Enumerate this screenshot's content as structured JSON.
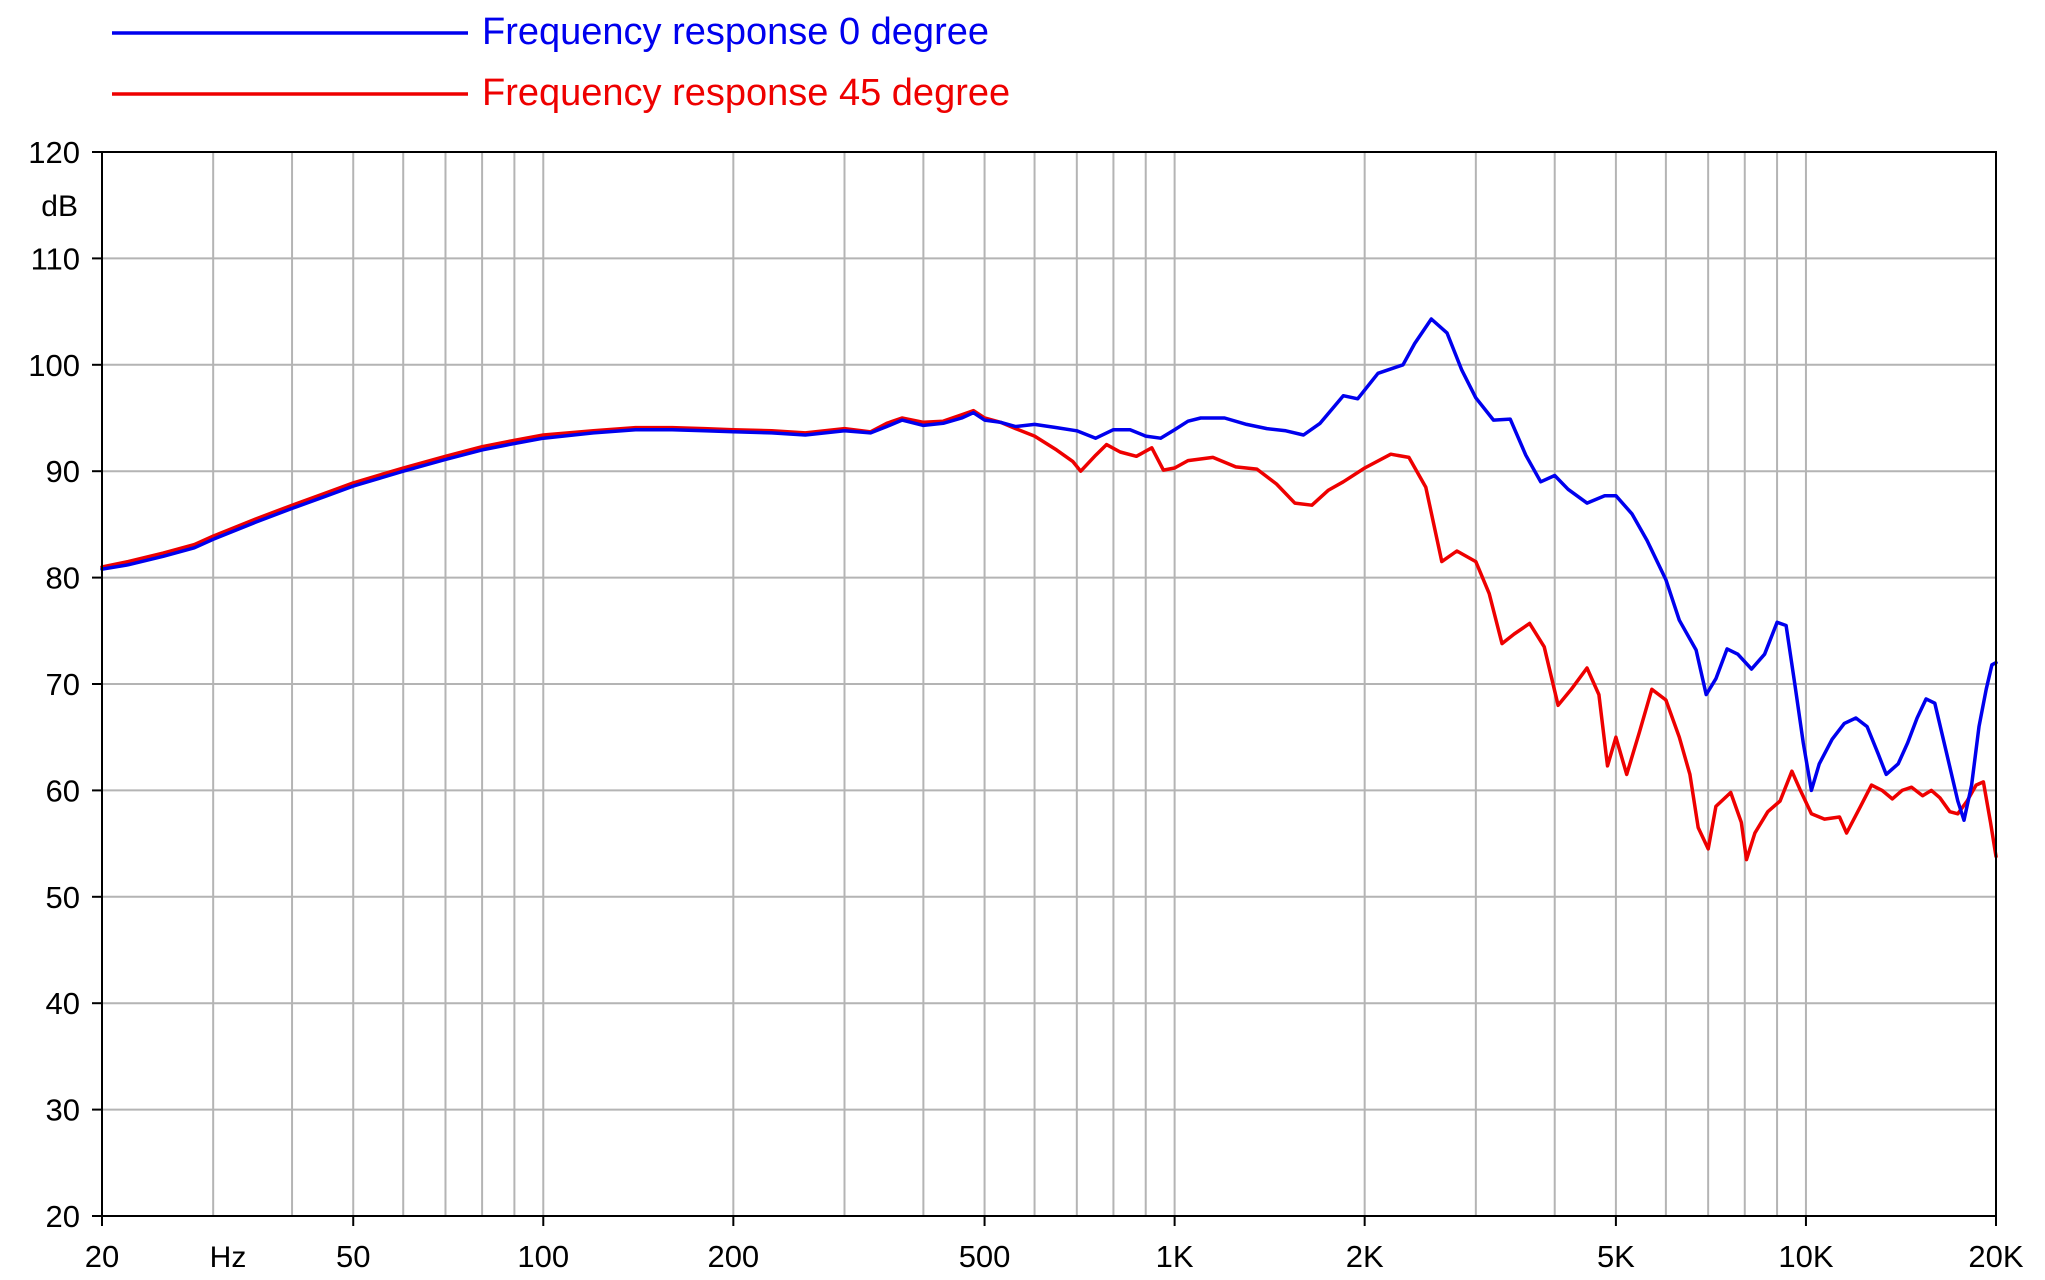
{
  "chart_data": {
    "type": "line",
    "title": "",
    "xlabel": "",
    "ylabel": "",
    "x_scale": "log",
    "xlim": [
      20,
      20000
    ],
    "ylim": [
      20,
      120
    ],
    "grid": true,
    "legend_position": "top-left",
    "y_unit": "dB",
    "x_unit": "Hz",
    "x_ticks": [
      {
        "value": 20,
        "label": "20"
      },
      {
        "value": 50,
        "label": "50"
      },
      {
        "value": 100,
        "label": "100"
      },
      {
        "value": 200,
        "label": "200"
      },
      {
        "value": 500,
        "label": "500"
      },
      {
        "value": 1000,
        "label": "1K"
      },
      {
        "value": 2000,
        "label": "2K"
      },
      {
        "value": 5000,
        "label": "5K"
      },
      {
        "value": 10000,
        "label": "10K"
      },
      {
        "value": 20000,
        "label": "20K"
      }
    ],
    "y_ticks": [
      20,
      30,
      40,
      50,
      60,
      70,
      80,
      90,
      100,
      110,
      120
    ],
    "series": [
      {
        "name": "Frequency response 0 degree",
        "color": "#0000ee",
        "points": [
          [
            20,
            80.8
          ],
          [
            22,
            81.2
          ],
          [
            25,
            82.0
          ],
          [
            28,
            82.8
          ],
          [
            30,
            83.6
          ],
          [
            35,
            85.2
          ],
          [
            40,
            86.5
          ],
          [
            45,
            87.6
          ],
          [
            50,
            88.6
          ],
          [
            60,
            90.0
          ],
          [
            70,
            91.1
          ],
          [
            80,
            92.0
          ],
          [
            90,
            92.6
          ],
          [
            100,
            93.1
          ],
          [
            120,
            93.6
          ],
          [
            140,
            93.9
          ],
          [
            160,
            93.9
          ],
          [
            180,
            93.8
          ],
          [
            200,
            93.7
          ],
          [
            230,
            93.6
          ],
          [
            260,
            93.4
          ],
          [
            300,
            93.8
          ],
          [
            330,
            93.6
          ],
          [
            350,
            94.2
          ],
          [
            370,
            94.8
          ],
          [
            400,
            94.3
          ],
          [
            430,
            94.5
          ],
          [
            460,
            95.0
          ],
          [
            480,
            95.5
          ],
          [
            500,
            94.8
          ],
          [
            530,
            94.6
          ],
          [
            560,
            94.2
          ],
          [
            600,
            94.4
          ],
          [
            650,
            94.1
          ],
          [
            700,
            93.8
          ],
          [
            750,
            93.1
          ],
          [
            800,
            93.9
          ],
          [
            850,
            93.9
          ],
          [
            900,
            93.3
          ],
          [
            950,
            93.1
          ],
          [
            1000,
            93.9
          ],
          [
            1050,
            94.7
          ],
          [
            1100,
            95.0
          ],
          [
            1200,
            95.0
          ],
          [
            1300,
            94.4
          ],
          [
            1400,
            94.0
          ],
          [
            1500,
            93.8
          ],
          [
            1600,
            93.4
          ],
          [
            1700,
            94.5
          ],
          [
            1850,
            97.1
          ],
          [
            1950,
            96.8
          ],
          [
            2100,
            99.2
          ],
          [
            2300,
            100.0
          ],
          [
            2400,
            102.0
          ],
          [
            2550,
            104.3
          ],
          [
            2700,
            103.0
          ],
          [
            2850,
            99.5
          ],
          [
            3000,
            96.9
          ],
          [
            3200,
            94.8
          ],
          [
            3400,
            94.9
          ],
          [
            3600,
            91.5
          ],
          [
            3800,
            89.0
          ],
          [
            4000,
            89.6
          ],
          [
            4200,
            88.3
          ],
          [
            4500,
            87.0
          ],
          [
            4800,
            87.7
          ],
          [
            5000,
            87.7
          ],
          [
            5300,
            86.0
          ],
          [
            5600,
            83.5
          ],
          [
            6000,
            79.8
          ],
          [
            6300,
            76.0
          ],
          [
            6700,
            73.2
          ],
          [
            6950,
            69.0
          ],
          [
            7200,
            70.5
          ],
          [
            7500,
            73.3
          ],
          [
            7800,
            72.8
          ],
          [
            8200,
            71.4
          ],
          [
            8600,
            72.8
          ],
          [
            9000,
            75.8
          ],
          [
            9300,
            75.5
          ],
          [
            9600,
            70.0
          ],
          [
            9900,
            64.5
          ],
          [
            10200,
            60.0
          ],
          [
            10500,
            62.5
          ],
          [
            11000,
            64.8
          ],
          [
            11500,
            66.3
          ],
          [
            12000,
            66.8
          ],
          [
            12500,
            66.0
          ],
          [
            13000,
            63.5
          ],
          [
            13400,
            61.5
          ],
          [
            14000,
            62.5
          ],
          [
            14500,
            64.5
          ],
          [
            15000,
            66.8
          ],
          [
            15500,
            68.6
          ],
          [
            16000,
            68.2
          ],
          [
            16700,
            63.5
          ],
          [
            17400,
            59.0
          ],
          [
            17800,
            57.2
          ],
          [
            18300,
            60.5
          ],
          [
            18800,
            66.0
          ],
          [
            19300,
            69.5
          ],
          [
            19700,
            71.8
          ],
          [
            20000,
            72.0
          ]
        ]
      },
      {
        "name": "Frequency response 45 degree",
        "color": "#ee0000",
        "points": [
          [
            20,
            81.0
          ],
          [
            22,
            81.5
          ],
          [
            25,
            82.3
          ],
          [
            28,
            83.1
          ],
          [
            30,
            83.9
          ],
          [
            35,
            85.5
          ],
          [
            40,
            86.8
          ],
          [
            45,
            87.9
          ],
          [
            50,
            88.9
          ],
          [
            60,
            90.3
          ],
          [
            70,
            91.4
          ],
          [
            80,
            92.3
          ],
          [
            90,
            92.9
          ],
          [
            100,
            93.4
          ],
          [
            120,
            93.8
          ],
          [
            140,
            94.1
          ],
          [
            160,
            94.1
          ],
          [
            180,
            94.0
          ],
          [
            200,
            93.9
          ],
          [
            230,
            93.8
          ],
          [
            260,
            93.6
          ],
          [
            300,
            94.0
          ],
          [
            330,
            93.7
          ],
          [
            350,
            94.5
          ],
          [
            370,
            95.0
          ],
          [
            400,
            94.6
          ],
          [
            430,
            94.7
          ],
          [
            460,
            95.3
          ],
          [
            480,
            95.7
          ],
          [
            500,
            95.0
          ],
          [
            530,
            94.6
          ],
          [
            560,
            94.0
          ],
          [
            600,
            93.3
          ],
          [
            650,
            92.0
          ],
          [
            690,
            90.9
          ],
          [
            710,
            90.0
          ],
          [
            750,
            91.5
          ],
          [
            780,
            92.5
          ],
          [
            820,
            91.8
          ],
          [
            870,
            91.4
          ],
          [
            920,
            92.2
          ],
          [
            960,
            90.1
          ],
          [
            1000,
            90.3
          ],
          [
            1050,
            91.0
          ],
          [
            1150,
            91.3
          ],
          [
            1250,
            90.4
          ],
          [
            1350,
            90.2
          ],
          [
            1450,
            88.8
          ],
          [
            1550,
            87.0
          ],
          [
            1650,
            86.8
          ],
          [
            1750,
            88.2
          ],
          [
            1850,
            89.0
          ],
          [
            2000,
            90.3
          ],
          [
            2200,
            91.6
          ],
          [
            2350,
            91.3
          ],
          [
            2500,
            88.5
          ],
          [
            2650,
            81.5
          ],
          [
            2800,
            82.5
          ],
          [
            3000,
            81.5
          ],
          [
            3150,
            78.5
          ],
          [
            3300,
            73.8
          ],
          [
            3450,
            74.7
          ],
          [
            3650,
            75.7
          ],
          [
            3850,
            73.5
          ],
          [
            4050,
            68.0
          ],
          [
            4250,
            69.5
          ],
          [
            4500,
            71.5
          ],
          [
            4700,
            69.0
          ],
          [
            4850,
            62.3
          ],
          [
            5000,
            65.0
          ],
          [
            5200,
            61.5
          ],
          [
            5450,
            65.5
          ],
          [
            5700,
            69.5
          ],
          [
            6000,
            68.5
          ],
          [
            6300,
            65.0
          ],
          [
            6550,
            61.5
          ],
          [
            6750,
            56.5
          ],
          [
            7000,
            54.5
          ],
          [
            7200,
            58.5
          ],
          [
            7600,
            59.8
          ],
          [
            7900,
            57.0
          ],
          [
            8050,
            53.5
          ],
          [
            8300,
            56.0
          ],
          [
            8700,
            58.0
          ],
          [
            9100,
            59.0
          ],
          [
            9500,
            61.8
          ],
          [
            9800,
            60.0
          ],
          [
            10200,
            57.8
          ],
          [
            10700,
            57.3
          ],
          [
            11300,
            57.5
          ],
          [
            11600,
            56.0
          ],
          [
            12200,
            58.5
          ],
          [
            12700,
            60.5
          ],
          [
            13200,
            60.0
          ],
          [
            13700,
            59.2
          ],
          [
            14200,
            60.0
          ],
          [
            14700,
            60.3
          ],
          [
            15300,
            59.5
          ],
          [
            15800,
            60.0
          ],
          [
            16300,
            59.3
          ],
          [
            16900,
            58.0
          ],
          [
            17400,
            57.8
          ],
          [
            18000,
            59.0
          ],
          [
            18600,
            60.5
          ],
          [
            19100,
            60.8
          ],
          [
            19600,
            57.0
          ],
          [
            20000,
            53.8
          ]
        ]
      }
    ]
  }
}
